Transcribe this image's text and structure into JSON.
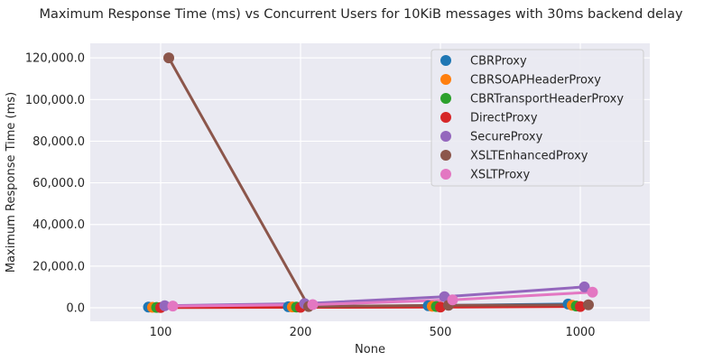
{
  "chart_data": {
    "type": "line",
    "title": "Maximum Response Time (ms) vs Concurrent Users for 10KiB messages with 30ms backend delay",
    "xlabel": "None",
    "ylabel": "Maximum Response Time (ms)",
    "categories": [
      "100",
      "200",
      "500",
      "1000"
    ],
    "ylim": [
      -6500,
      127000
    ],
    "yticks": [
      0,
      20000,
      40000,
      60000,
      80000,
      100000,
      120000
    ],
    "ytick_labels": [
      "0.0",
      "20,000.0",
      "40,000.0",
      "60,000.0",
      "80,000.0",
      "100,000.0",
      "120,000.0"
    ],
    "grid": true,
    "legend_position": "top-right",
    "series": [
      {
        "name": "CBRProxy",
        "color": "#1f77b4",
        "values": [
          300,
          500,
          1000,
          1800
        ]
      },
      {
        "name": "CBRSOAPHeaderProxy",
        "color": "#ff7f0e",
        "values": [
          200,
          400,
          700,
          1200
        ]
      },
      {
        "name": "CBRTransportHeaderProxy",
        "color": "#2ca02c",
        "values": [
          150,
          300,
          600,
          800
        ]
      },
      {
        "name": "DirectProxy",
        "color": "#d62728",
        "values": [
          100,
          200,
          300,
          600
        ]
      },
      {
        "name": "SecureProxy",
        "color": "#9467bd",
        "values": [
          1000,
          2000,
          5300,
          10000
        ]
      },
      {
        "name": "XSLTEnhancedProxy",
        "color": "#8c564b",
        "values": [
          120000,
          600,
          1200,
          1400
        ]
      },
      {
        "name": "XSLTProxy",
        "color": "#e377c2",
        "values": [
          800,
          1500,
          3800,
          7500
        ]
      }
    ]
  }
}
